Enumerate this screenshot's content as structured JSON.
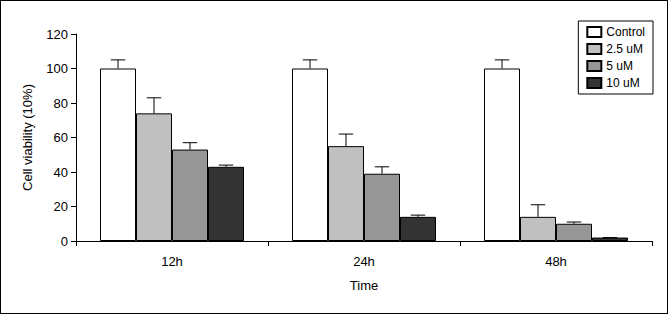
{
  "chart_data": {
    "type": "bar",
    "x_label": "Time",
    "y_label": "Cell viability (10%)",
    "categories": [
      "12h",
      "24h",
      "48h"
    ],
    "series": [
      {
        "name": "Control",
        "color": "#ffffff",
        "values": [
          100,
          100,
          100
        ],
        "errors": [
          5,
          5,
          5
        ]
      },
      {
        "name": "2.5 uM",
        "color": "#c0c0c0",
        "values": [
          74,
          55,
          14
        ],
        "errors": [
          9,
          7,
          7
        ]
      },
      {
        "name": "5 uM",
        "color": "#969696",
        "values": [
          53,
          39,
          10
        ],
        "errors": [
          4,
          4,
          1
        ]
      },
      {
        "name": "10 uM",
        "color": "#333333",
        "values": [
          43,
          14,
          2
        ],
        "errors": [
          1,
          1,
          0
        ]
      }
    ],
    "ylim": [
      0,
      120
    ],
    "yticks": [
      0,
      20,
      40,
      60,
      80,
      100,
      120
    ],
    "grid": false,
    "legend": "top-right"
  }
}
